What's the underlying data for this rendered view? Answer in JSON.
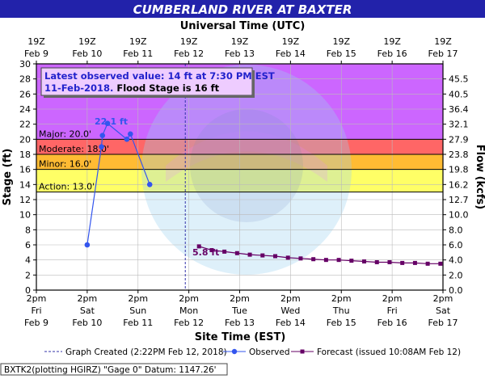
{
  "chart_data": {
    "type": "line",
    "title": "CUMBERLAND RIVER AT BAXTER",
    "top_axis_label": "Universal Time (UTC)",
    "top_ticks": [
      {
        "l1": "19Z",
        "l2": "Feb  9"
      },
      {
        "l1": "19Z",
        "l2": "Feb 10"
      },
      {
        "l1": "19Z",
        "l2": "Feb 11"
      },
      {
        "l1": "19Z",
        "l2": "Feb 12"
      },
      {
        "l1": "19Z",
        "l2": "Feb 13"
      },
      {
        "l1": "19Z",
        "l2": "Feb 14"
      },
      {
        "l1": "19Z",
        "l2": "Feb 15"
      },
      {
        "l1": "19Z",
        "l2": "Feb 16"
      },
      {
        "l1": "19Z",
        "l2": "Feb 17"
      }
    ],
    "xlabel": "Site Time (EST)",
    "bottom_ticks": [
      {
        "l1": "2pm",
        "l2": "Fri",
        "l3": "Feb 9"
      },
      {
        "l1": "2pm",
        "l2": "Sat",
        "l3": "Feb 10"
      },
      {
        "l1": "2pm",
        "l2": "Sun",
        "l3": "Feb 11"
      },
      {
        "l1": "2pm",
        "l2": "Mon",
        "l3": "Feb 12"
      },
      {
        "l1": "2pm",
        "l2": "Tue",
        "l3": "Feb 13"
      },
      {
        "l1": "2pm",
        "l2": "Wed",
        "l3": "Feb 14"
      },
      {
        "l1": "2pm",
        "l2": "Thu",
        "l3": "Feb 15"
      },
      {
        "l1": "2pm",
        "l2": "Fri",
        "l3": "Feb 16"
      },
      {
        "l1": "2pm",
        "l2": "Sat",
        "l3": "Feb 17"
      }
    ],
    "x_range": [
      "Feb 9 2pm",
      "Feb 17 2pm"
    ],
    "ylabel": "Stage (ft)",
    "ylim": [
      0,
      30
    ],
    "y_ticks": [
      0,
      2,
      4,
      6,
      8,
      10,
      12,
      14,
      16,
      18,
      20,
      22,
      24,
      26,
      28,
      30
    ],
    "y2label": "Flow (kcfs)",
    "y2_ticks": [
      "0.0",
      "2.0",
      "4.0",
      "6.0",
      "8.0",
      "10.0",
      "12.7",
      "16.2",
      "19.8",
      "23.8",
      "27.9",
      "32.1",
      "36.4",
      "40.5",
      "45.5"
    ],
    "flood_categories": [
      {
        "name": "Action",
        "label": "Action: 13.0'",
        "stage": 13.0,
        "color": "#ffff66"
      },
      {
        "name": "Minor",
        "label": "Minor: 16.0'",
        "stage": 16.0,
        "color": "#ffbb33"
      },
      {
        "name": "Moderate",
        "label": "Moderate: 18.0'",
        "stage": 18.0,
        "color": "#ff6666"
      },
      {
        "name": "Major",
        "label": "Major: 20.0'",
        "stage": 20.0,
        "color": "#cc66ff"
      }
    ],
    "info_box": {
      "line1": "Latest observed value: 14 ft at 7:30 PM EST",
      "line2_date": "11-Feb-2018.",
      "line2_rest": " Flood Stage is 16 ft"
    },
    "graph_created_day": 2.93,
    "observed": {
      "name": "Observed",
      "color": "#3355ee",
      "peak_label": "22.1 ft",
      "points": [
        {
          "day": 1.0,
          "stage": 6.0
        },
        {
          "day": 1.28,
          "stage": 19.0
        },
        {
          "day": 1.3,
          "stage": 20.5
        },
        {
          "day": 1.4,
          "stage": 22.1
        },
        {
          "day": 1.78,
          "stage": 20.0
        },
        {
          "day": 1.85,
          "stage": 20.7
        },
        {
          "day": 2.23,
          "stage": 14.0
        }
      ]
    },
    "forecast": {
      "name": "Forecast",
      "color": "#660066",
      "start_label": "5.8 ft",
      "points": [
        {
          "day": 3.2,
          "stage": 5.8
        },
        {
          "day": 3.45,
          "stage": 5.3
        },
        {
          "day": 3.7,
          "stage": 5.1
        },
        {
          "day": 3.95,
          "stage": 4.9
        },
        {
          "day": 4.2,
          "stage": 4.7
        },
        {
          "day": 4.45,
          "stage": 4.6
        },
        {
          "day": 4.7,
          "stage": 4.5
        },
        {
          "day": 4.95,
          "stage": 4.3
        },
        {
          "day": 5.2,
          "stage": 4.2
        },
        {
          "day": 5.45,
          "stage": 4.1
        },
        {
          "day": 5.7,
          "stage": 4.0
        },
        {
          "day": 5.95,
          "stage": 4.0
        },
        {
          "day": 6.2,
          "stage": 3.9
        },
        {
          "day": 6.45,
          "stage": 3.8
        },
        {
          "day": 6.7,
          "stage": 3.7
        },
        {
          "day": 6.95,
          "stage": 3.7
        },
        {
          "day": 7.2,
          "stage": 3.6
        },
        {
          "day": 7.45,
          "stage": 3.6
        },
        {
          "day": 7.7,
          "stage": 3.5
        },
        {
          "day": 7.95,
          "stage": 3.5
        }
      ]
    },
    "legend": {
      "graph_created": "Graph Created (2:22PM Feb 12, 2018)",
      "observed": "Observed",
      "forecast": "Forecast (issued 10:08AM Feb 12)"
    },
    "footer": "BXTK2(plotting HGIRZ) \"Gage 0\" Datum:  1147.26'",
    "colors": {
      "plot_bg": "#ffffff",
      "grid": "#bbbbbb",
      "title_bar": "#2222aa",
      "title_text": "#ffffff",
      "info_box_bg": "#eeccff",
      "info_text": "#2222cc",
      "created_line": "#3333aa"
    },
    "legend_placement": "bottom",
    "grid": true
  }
}
